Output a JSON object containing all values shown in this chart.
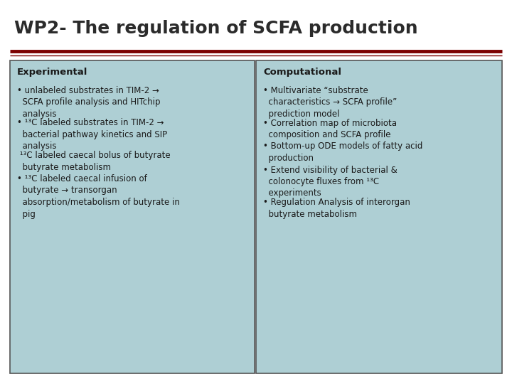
{
  "title": "WP2- The regulation of SCFA production",
  "title_color": "#2B2B2B",
  "title_bg": "#FFFFFF",
  "title_fontsize": 18,
  "separator_color": "#7B0000",
  "box_bg": "#AECFD4",
  "box_border": "#555555",
  "text_color": "#1A1A1A",
  "header_fontsize": 9.5,
  "body_fontsize": 8.5,
  "left_header": "Experimental",
  "right_header": "Computational",
  "left_bullets": [
    "• unlabeled substrates in TIM-2 →\n  SCFA profile analysis and HITchip\n  analysis",
    "• ¹³C labeled substrates in TIM-2 →\n  bacterial pathway kinetics and SIP\n  analysis",
    " ¹³C labeled caecal bolus of butyrate\n  butyrate metabolism",
    "• ¹³C labeled caecal infusion of\n  butyrate → transorgan\n  absorption/metabolism of butyrate in\n  pig"
  ],
  "right_bullets": [
    "• Multivariate “substrate\n  characteristics → SCFA profile”\n  prediction model",
    "• Correlation map of microbiota\n  composition and SCFA profile",
    "• Bottom-up ODE models of fatty acid\n  production",
    "• Extend visibility of bacterial &\n  colonocyte fluxes from ¹³C\n  experiments",
    "• Regulation Analysis of interorgan\n  butyrate metabolism"
  ],
  "fig_width": 7.2,
  "fig_height": 5.4,
  "dpi": 100
}
